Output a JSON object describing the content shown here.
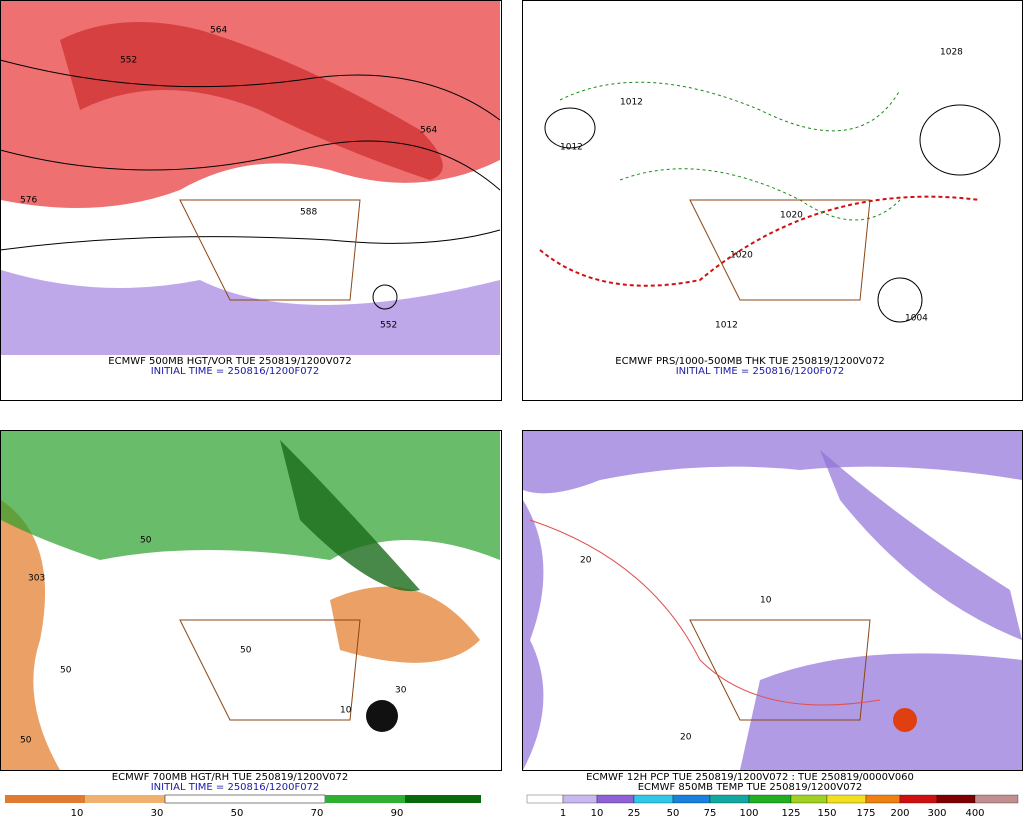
{
  "panels": [
    {
      "caption": "ECMWF 500MB HGT/VOR TUE 250819/1200V072",
      "init": "INITIAL TIME = 250816/1200F072",
      "labels": [
        "552",
        "564",
        "576",
        "588",
        "552",
        "564"
      ]
    },
    {
      "caption": "ECMWF PRS/1000-500MB THK TUE 250819/1200V072",
      "init": "INITIAL TIME = 250816/1200F072",
      "labels": [
        "1012",
        "1020",
        "1028",
        "1012",
        "1020",
        "1004",
        "1012"
      ]
    },
    {
      "caption": "ECMWF 700MB HGT/RH TUE 250819/1200V072",
      "init": "INITIAL TIME = 250816/1200F072",
      "labels": [
        "303",
        "50",
        "50",
        "50",
        "30",
        "50",
        "10"
      ],
      "colorbar": [
        "10",
        "30",
        "50",
        "70",
        "90"
      ]
    },
    {
      "caption": "ECMWF 12H PCP TUE 250819/1200V072 : TUE 250819/0000V060",
      "init": "ECMWF 850MB TEMP TUE 250819/1200V072",
      "labels": [
        "20",
        "10",
        "20"
      ],
      "colorbar": [
        "1",
        "10",
        "25",
        "50",
        "75",
        "100",
        "125",
        "150",
        "175",
        "200",
        "300",
        "400"
      ]
    }
  ]
}
